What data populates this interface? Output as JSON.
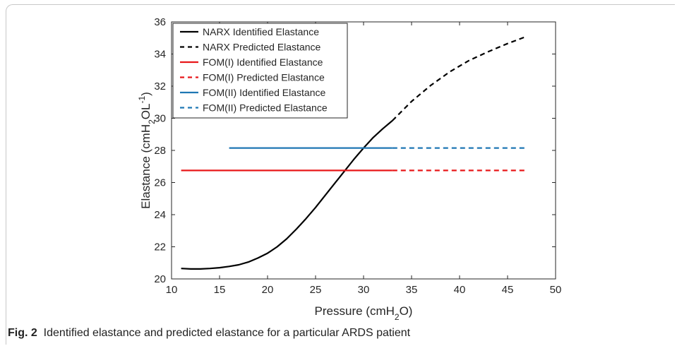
{
  "caption": {
    "label": "Fig. 2",
    "text": "Identified elastance and predicted elastance for a particular ARDS patient"
  },
  "chart_data": {
    "type": "line",
    "xlabel": "Pressure (cmH2O)",
    "ylabel": "Elastance (cmH2OL-1)",
    "xlim": [
      10,
      50
    ],
    "ylim": [
      20,
      36
    ],
    "xticks": [
      10,
      15,
      20,
      25,
      30,
      35,
      40,
      45,
      50
    ],
    "yticks": [
      20,
      22,
      24,
      26,
      28,
      30,
      32,
      34,
      36
    ],
    "grid": false,
    "legend_position": "top-left",
    "series": [
      {
        "name": "NARX Identified Elastance",
        "color": "#000000",
        "dash": "solid",
        "x": [
          11,
          12,
          13,
          14,
          15,
          16,
          17,
          18,
          19,
          20,
          21,
          22,
          23,
          24,
          25,
          26,
          27,
          28,
          29,
          30,
          31,
          32,
          33
        ],
        "y": [
          20.65,
          20.62,
          20.62,
          20.65,
          20.7,
          20.78,
          20.88,
          21.05,
          21.3,
          21.6,
          22.0,
          22.5,
          23.1,
          23.75,
          24.45,
          25.2,
          25.95,
          26.7,
          27.45,
          28.15,
          28.8,
          29.35,
          29.85
        ]
      },
      {
        "name": "NARX Predicted Elastance",
        "color": "#000000",
        "dash": "dashed",
        "x": [
          33,
          35,
          37,
          39,
          41,
          43,
          45,
          47
        ],
        "y": [
          29.85,
          31.05,
          32.05,
          32.9,
          33.6,
          34.15,
          34.65,
          35.1
        ]
      },
      {
        "name": "FOM(I) Identified Elastance",
        "color": "#e8181a",
        "dash": "solid",
        "x": [
          11,
          33
        ],
        "y": [
          26.75,
          26.75
        ]
      },
      {
        "name": "FOM(I) Predicted Elastance",
        "color": "#e8181a",
        "dash": "dashed",
        "x": [
          33,
          47
        ],
        "y": [
          26.75,
          26.75
        ]
      },
      {
        "name": "FOM(II) Identified Elastance",
        "color": "#1f77b4",
        "dash": "solid",
        "x": [
          16,
          33
        ],
        "y": [
          28.15,
          28.15
        ]
      },
      {
        "name": "FOM(II) Predicted Elastance",
        "color": "#1f77b4",
        "dash": "dashed",
        "x": [
          33,
          47
        ],
        "y": [
          28.15,
          28.15
        ]
      }
    ]
  }
}
